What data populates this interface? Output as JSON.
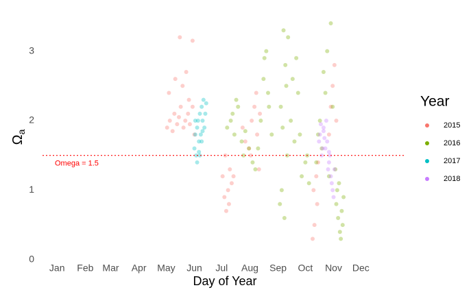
{
  "chart_data": {
    "type": "scatter",
    "x_label": "Day of Year",
    "y_label": {
      "symbol": "Ω",
      "subscript": "a"
    },
    "legend_title": "Year",
    "legend_position": "right",
    "grid": false,
    "xlim": [
      -15,
      383
    ],
    "ylim": [
      -0.16,
      3.44
    ],
    "xticks": [
      {
        "value": 1,
        "label": "Jan"
      },
      {
        "value": 32,
        "label": "Feb"
      },
      {
        "value": 60,
        "label": "Mar"
      },
      {
        "value": 91,
        "label": "Apr"
      },
      {
        "value": 121,
        "label": "May"
      },
      {
        "value": 152,
        "label": "Jun"
      },
      {
        "value": 182,
        "label": "Jul"
      },
      {
        "value": 213,
        "label": "Aug"
      },
      {
        "value": 244,
        "label": "Sep"
      },
      {
        "value": 274,
        "label": "Oct"
      },
      {
        "value": 305,
        "label": "Nov"
      },
      {
        "value": 335,
        "label": "Dec"
      }
    ],
    "yticks": [
      0,
      1,
      2,
      3
    ],
    "hline": {
      "value": 1.5,
      "label": "Omega = 1.5",
      "color": "#ff0000"
    },
    "series": [
      {
        "name": "2015",
        "color": "#F8766D",
        "x": [
          122,
          125,
          128,
          130,
          133,
          135,
          137,
          140,
          142,
          145,
          147,
          150,
          152,
          124,
          131,
          139,
          146,
          136,
          143,
          150,
          183,
          185,
          187,
          189,
          191,
          193,
          186,
          190,
          195,
          205,
          208,
          212,
          215,
          218,
          221,
          224,
          214,
          220,
          223,
          282,
          284,
          286,
          288,
          283,
          287,
          300,
          302,
          304,
          306,
          308
        ],
        "values": [
          1.9,
          2.0,
          1.85,
          2.1,
          1.95,
          2.05,
          2.2,
          1.9,
          2.0,
          2.1,
          1.95,
          2.2,
          1.8,
          2.4,
          2.6,
          2.5,
          2.3,
          3.2,
          2.7,
          3.15,
          1.2,
          0.9,
          0.7,
          1.0,
          1.3,
          1.1,
          1.5,
          0.8,
          1.2,
          1.9,
          1.7,
          1.6,
          2.0,
          2.2,
          1.8,
          2.1,
          1.5,
          2.4,
          1.3,
          0.3,
          0.5,
          1.2,
          1.4,
          1.0,
          0.8,
          1.8,
          2.2,
          2.5,
          2.8,
          2.0
        ]
      },
      {
        "name": "2016",
        "color": "#7CAE00",
        "x": [
          188,
          192,
          196,
          200,
          204,
          208,
          212,
          198,
          194,
          206,
          216,
          219,
          222,
          225,
          228,
          231,
          234,
          237,
          229,
          233,
          246,
          248,
          250,
          252,
          254,
          247,
          251,
          253,
          249,
          255,
          258,
          262,
          266,
          270,
          274,
          278,
          260,
          268,
          276,
          264,
          286,
          290,
          294,
          298,
          302,
          288,
          296,
          300,
          304,
          292,
          308,
          310,
          312,
          314,
          316,
          309,
          313,
          315,
          311,
          307
        ],
        "values": [
          1.9,
          2.0,
          1.8,
          2.2,
          1.7,
          1.85,
          1.6,
          2.3,
          2.1,
          1.5,
          1.4,
          1.3,
          1.6,
          2.0,
          2.6,
          3.0,
          2.2,
          1.8,
          2.9,
          2.4,
          0.8,
          1.0,
          3.3,
          2.8,
          1.5,
          2.2,
          0.6,
          2.5,
          1.9,
          3.2,
          2.0,
          1.7,
          2.4,
          1.2,
          1.4,
          1.1,
          2.6,
          1.8,
          1.5,
          2.9,
          1.4,
          2.0,
          2.7,
          3.0,
          3.4,
          1.8,
          2.4,
          1.2,
          2.2,
          1.6,
          0.8,
          0.6,
          0.4,
          0.7,
          0.9,
          1.0,
          0.3,
          0.5,
          1.1,
          1.3
        ]
      },
      {
        "name": "2017",
        "color": "#00BFC4",
        "x": [
          152,
          153,
          154,
          155,
          156,
          157,
          158,
          159,
          160,
          161,
          162,
          163,
          164,
          155,
          158,
          160,
          153,
          157,
          161,
          165
        ],
        "values": [
          1.6,
          1.8,
          1.5,
          1.9,
          2.0,
          1.7,
          2.1,
          1.8,
          2.2,
          2.0,
          2.3,
          1.9,
          2.1,
          1.4,
          1.5,
          1.7,
          2.0,
          1.55,
          1.85,
          2.25
        ]
      },
      {
        "name": "2018",
        "color": "#C77CFF",
        "x": [
          290,
          292,
          294,
          296,
          298,
          300,
          302,
          304,
          291,
          295,
          299,
          303,
          293,
          297,
          301,
          305,
          289,
          306,
          294,
          300
        ],
        "values": [
          1.8,
          1.5,
          1.9,
          1.6,
          1.7,
          1.4,
          1.2,
          1.0,
          1.95,
          1.75,
          1.3,
          1.1,
          1.6,
          2.0,
          1.5,
          0.9,
          1.7,
          1.3,
          1.85,
          1.55
        ]
      }
    ]
  }
}
